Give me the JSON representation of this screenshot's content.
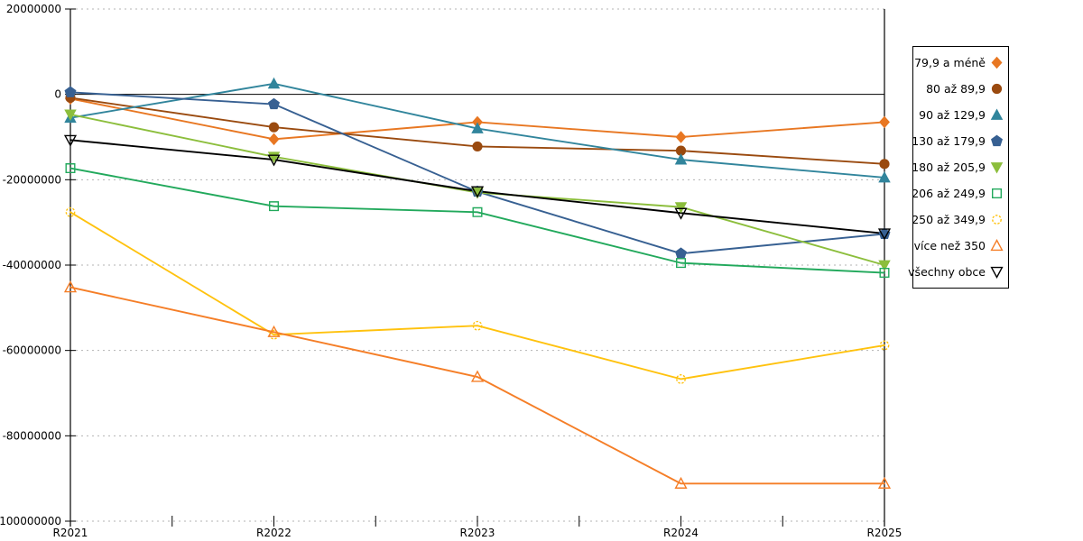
{
  "chart_data": {
    "type": "line",
    "title": "",
    "xlabel": "",
    "ylabel": "",
    "x": [
      "R2021",
      "R2022",
      "R2023",
      "R2024",
      "R2025"
    ],
    "y_axis": {
      "min": -100000000,
      "max": 20000000,
      "tick_step": 20000000,
      "tick_values": [
        20000000,
        0,
        -20000000,
        -40000000,
        -60000000,
        -80000000,
        -100000000
      ],
      "tick_labels": [
        "20000000",
        "0",
        "-20000000",
        "-40000000",
        "-60000000",
        "-80000000",
        "-100000000"
      ]
    },
    "grid": "horizontal-dashed",
    "zero_line": true,
    "legend_position": "right",
    "colors": {
      "gridline": "#b3b3b3",
      "axis": "#000000"
    },
    "series": [
      {
        "name": "79,9 a méně",
        "color": "#E87722",
        "marker": "diamond",
        "filled": true,
        "values": [
          -1000000,
          -10500000,
          -6500000,
          -10000000,
          -6500000
        ]
      },
      {
        "name": "80 až 89,9",
        "color": "#9A4A0F",
        "marker": "circle",
        "filled": true,
        "values": [
          -800000,
          -7700000,
          -12200000,
          -13200000,
          -16300000
        ]
      },
      {
        "name": "90 až 129,9",
        "color": "#31859C",
        "marker": "triangle-up",
        "filled": true,
        "values": [
          -5500000,
          2500000,
          -8000000,
          -15300000,
          -19500000
        ]
      },
      {
        "name": "130 až 179,9",
        "color": "#376092",
        "marker": "pentagon",
        "filled": true,
        "values": [
          500000,
          -2300000,
          -22800000,
          -37300000,
          -32700000
        ]
      },
      {
        "name": "180 až 205,9",
        "color": "#8CBE3C",
        "marker": "triangle-down",
        "filled": true,
        "values": [
          -4700000,
          -14600000,
          -23000000,
          -26400000,
          -40000000
        ]
      },
      {
        "name": "206 až 249,9",
        "color": "#22A95C",
        "marker": "square",
        "filled": false,
        "values": [
          -17300000,
          -26200000,
          -27600000,
          -39500000,
          -41800000
        ]
      },
      {
        "name": "250 až 349,9",
        "color": "#FFC20E",
        "marker": "circle",
        "filled": false,
        "values": [
          -27600000,
          -56300000,
          -54200000,
          -66700000,
          -58800000
        ]
      },
      {
        "name": "více než 350",
        "color": "#F57E27",
        "marker": "triangle-up",
        "filled": false,
        "values": [
          -45200000,
          -55700000,
          -66200000,
          -91200000,
          -91200000
        ]
      },
      {
        "name": "všechny obce",
        "color": "#000000",
        "marker": "triangle-down",
        "filled": false,
        "values": [
          -10700000,
          -15300000,
          -22700000,
          -27800000,
          -32600000
        ]
      }
    ]
  }
}
